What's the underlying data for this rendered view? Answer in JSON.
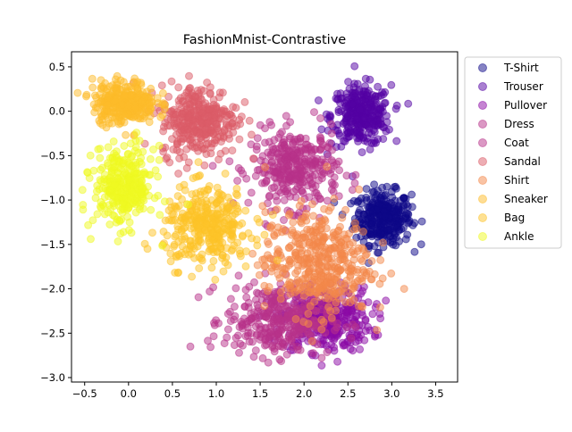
{
  "chart_data": {
    "type": "scatter",
    "title": "FashionMnist-Contrastive",
    "xlabel": "",
    "ylabel": "",
    "xlim": [
      -0.65,
      3.75
    ],
    "ylim": [
      -3.05,
      0.67
    ],
    "xticks": [
      -0.5,
      0.0,
      0.5,
      1.0,
      1.5,
      2.0,
      2.5,
      3.0,
      3.5
    ],
    "yticks": [
      -3.0,
      -2.5,
      -2.0,
      -1.5,
      -1.0,
      -0.5,
      0.0,
      0.5
    ],
    "xtick_labels": [
      "−0.5",
      "0.0",
      "0.5",
      "1.0",
      "1.5",
      "2.0",
      "2.5",
      "3.0",
      "3.5"
    ],
    "ytick_labels": [
      "−3.0",
      "−2.5",
      "−2.0",
      "−1.5",
      "−1.0",
      "−0.5",
      "0.0",
      "0.5"
    ],
    "grid": false,
    "legend_position": "outside-right-top",
    "marker_alpha": 0.5,
    "series": [
      {
        "name": "T-Shirt",
        "color": "#0d0887",
        "center": [
          2.9,
          -1.2
        ],
        "spread": [
          0.16,
          0.15
        ],
        "n": 320
      },
      {
        "name": "Trouser",
        "color": "#5302a3",
        "center": [
          2.65,
          -0.05
        ],
        "spread": [
          0.17,
          0.17
        ],
        "n": 320
      },
      {
        "name": "Pullover",
        "color": "#8b0aa5",
        "center": [
          2.25,
          -2.35
        ],
        "spread": [
          0.26,
          0.18
        ],
        "n": 340
      },
      {
        "name": "Dress",
        "color": "#b83289",
        "center": [
          1.9,
          -0.65
        ],
        "spread": [
          0.25,
          0.22
        ],
        "n": 340
      },
      {
        "name": "Coat",
        "color": "#b83289",
        "center": [
          1.7,
          -2.35
        ],
        "spread": [
          0.3,
          0.2
        ],
        "n": 340
      },
      {
        "name": "Sandal",
        "color": "#db5c68",
        "center": [
          0.8,
          -0.1
        ],
        "spread": [
          0.22,
          0.2
        ],
        "n": 340
      },
      {
        "name": "Shirt",
        "color": "#f48849",
        "center": [
          2.15,
          -1.7
        ],
        "spread": [
          0.3,
          0.3
        ],
        "n": 420
      },
      {
        "name": "Sneaker",
        "color": "#febc2a",
        "center": [
          -0.05,
          0.1
        ],
        "spread": [
          0.18,
          0.12
        ],
        "n": 300
      },
      {
        "name": "Bag",
        "color": "#fdc328",
        "center": [
          0.9,
          -1.3
        ],
        "spread": [
          0.25,
          0.22
        ],
        "n": 340
      },
      {
        "name": "Ankle",
        "color": "#f0f921",
        "center": [
          -0.05,
          -0.85
        ],
        "spread": [
          0.17,
          0.22
        ],
        "n": 320
      }
    ]
  }
}
